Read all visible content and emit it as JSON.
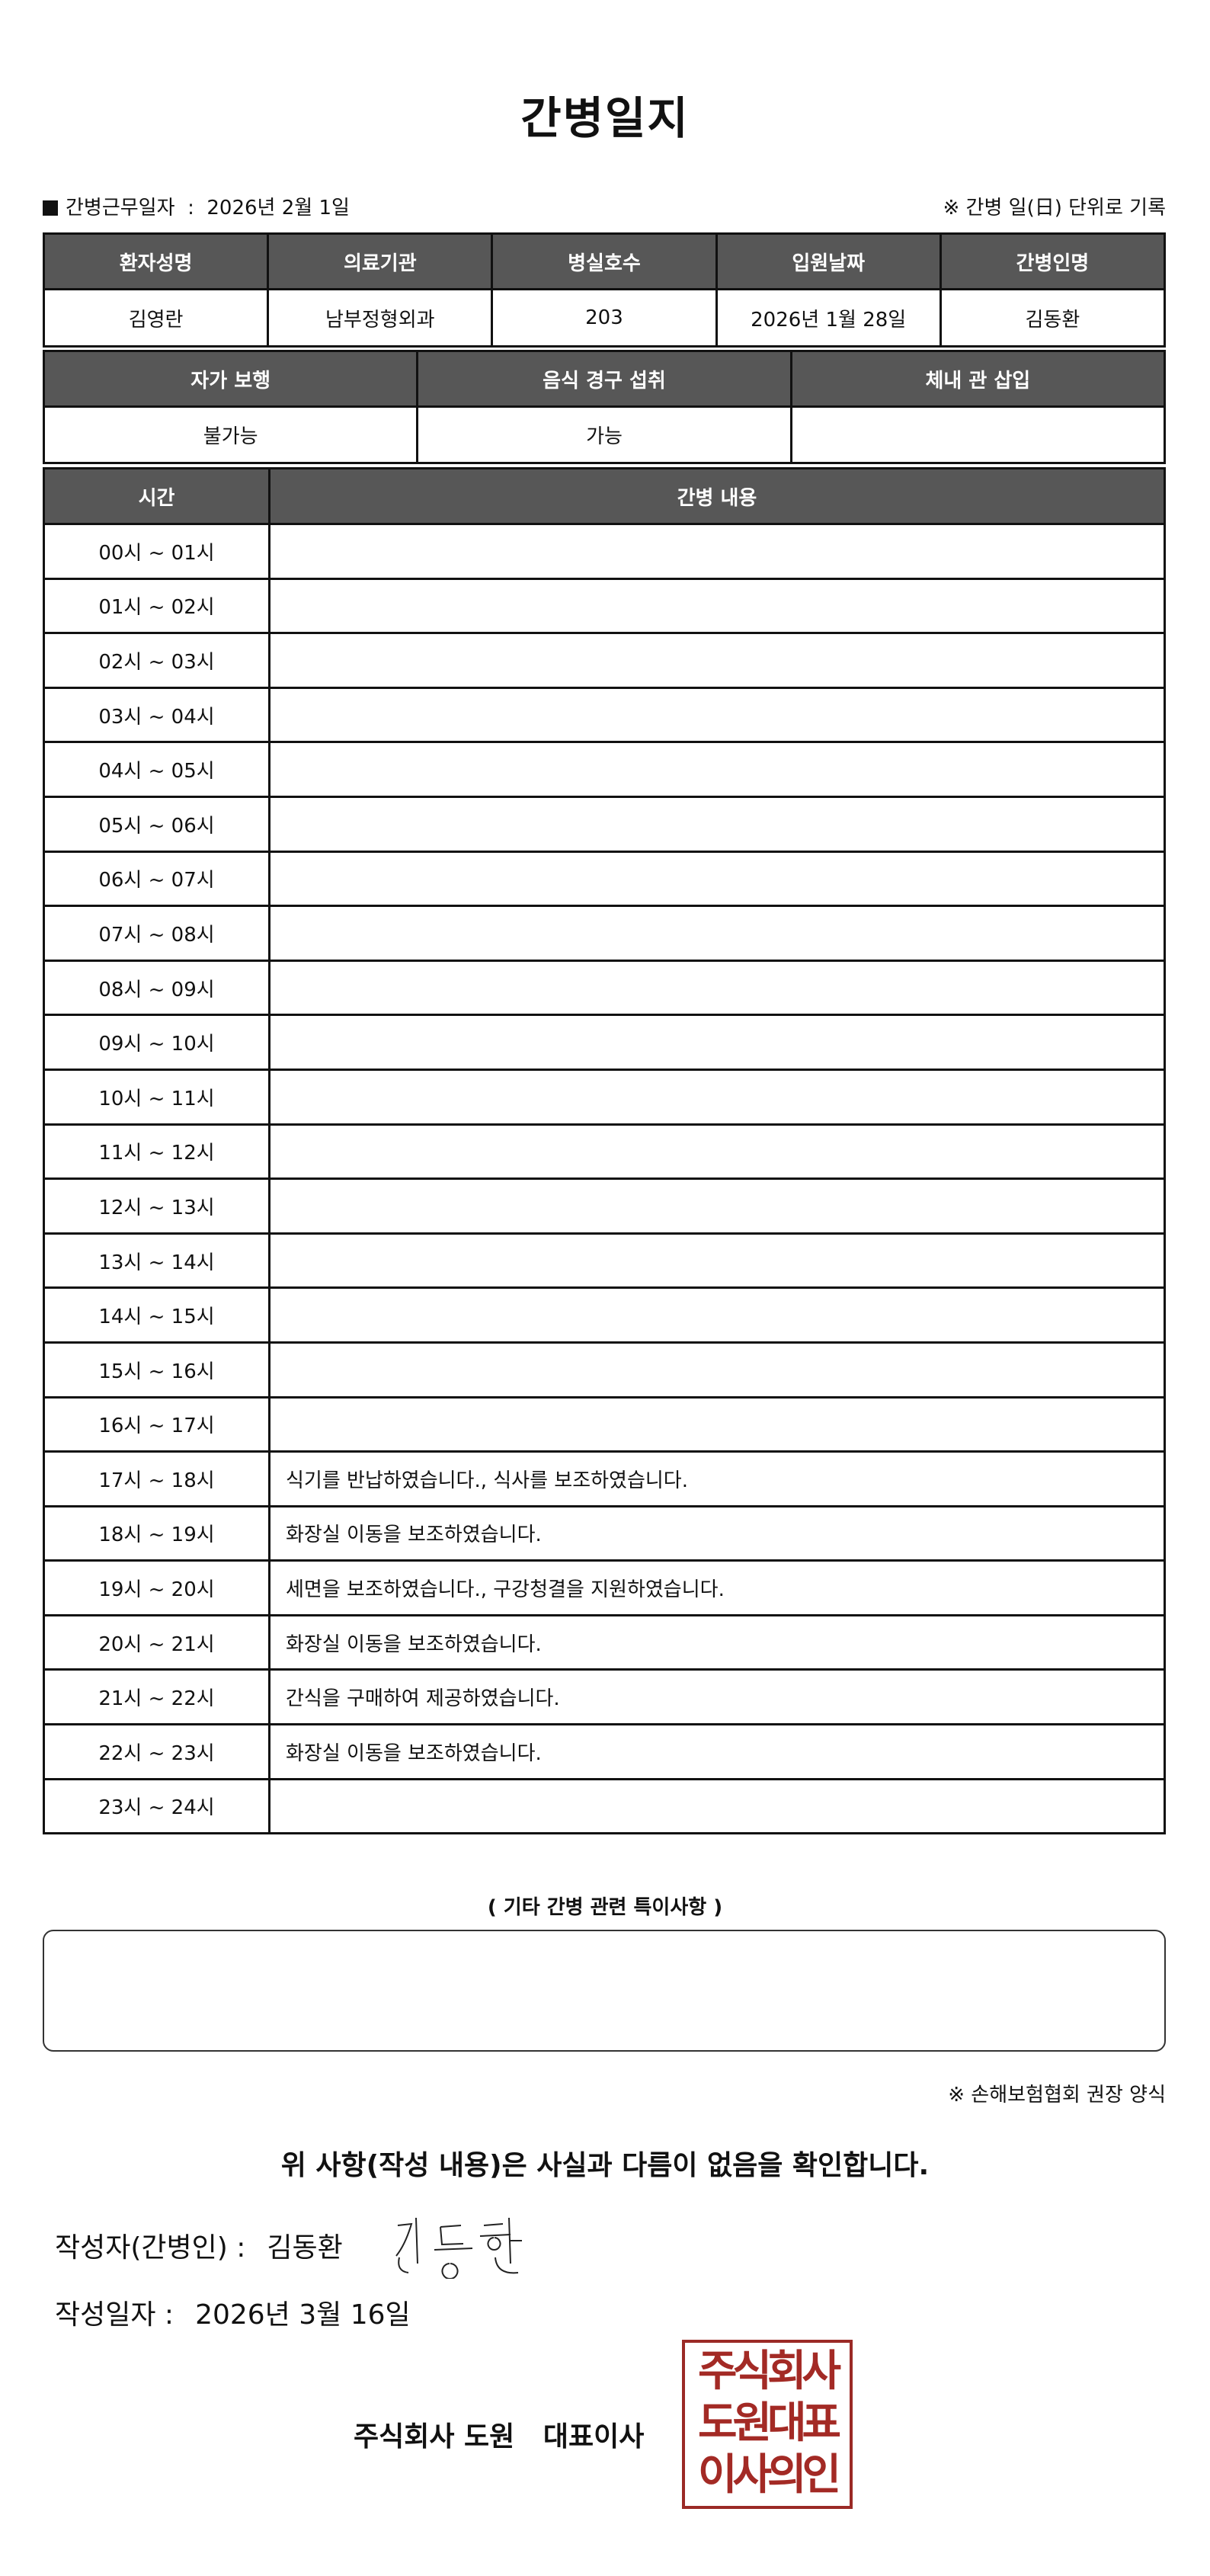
{
  "title": "간병일지",
  "info": {
    "work_date_label": "간병근무일자",
    "work_date_sep": ":",
    "work_date": "2026년 2월 1일",
    "note": "※ 간병 일(日) 단위로 기록"
  },
  "patient_table": {
    "headers": [
      "환자성명",
      "의료기관",
      "병실호수",
      "입원날짜",
      "간병인명"
    ],
    "values": [
      "김영란",
      "남부정형외과",
      "203",
      "2026년 1월 28일",
      "김동환"
    ]
  },
  "status_table": {
    "headers": [
      "자가 보행",
      "음식 경구 섭취",
      "체내 관 삽입"
    ],
    "values": [
      "불가능",
      "가능",
      ""
    ]
  },
  "log_table": {
    "headers": [
      "시간",
      "간병 내용"
    ],
    "rows": [
      {
        "time": "00시 ~ 01시",
        "content": ""
      },
      {
        "time": "01시 ~ 02시",
        "content": ""
      },
      {
        "time": "02시 ~ 03시",
        "content": ""
      },
      {
        "time": "03시 ~ 04시",
        "content": ""
      },
      {
        "time": "04시 ~ 05시",
        "content": ""
      },
      {
        "time": "05시 ~ 06시",
        "content": ""
      },
      {
        "time": "06시 ~ 07시",
        "content": ""
      },
      {
        "time": "07시 ~ 08시",
        "content": ""
      },
      {
        "time": "08시 ~ 09시",
        "content": ""
      },
      {
        "time": "09시 ~ 10시",
        "content": ""
      },
      {
        "time": "10시 ~ 11시",
        "content": ""
      },
      {
        "time": "11시 ~ 12시",
        "content": ""
      },
      {
        "time": "12시 ~ 13시",
        "content": ""
      },
      {
        "time": "13시 ~ 14시",
        "content": ""
      },
      {
        "time": "14시 ~ 15시",
        "content": ""
      },
      {
        "time": "15시 ~ 16시",
        "content": ""
      },
      {
        "time": "16시 ~ 17시",
        "content": ""
      },
      {
        "time": "17시 ~ 18시",
        "content": "식기를 반납하였습니다., 식사를 보조하였습니다."
      },
      {
        "time": "18시 ~ 19시",
        "content": "화장실 이동을 보조하였습니다."
      },
      {
        "time": "19시 ~ 20시",
        "content": "세면을 보조하였습니다., 구강청결을 지원하였습니다."
      },
      {
        "time": "20시 ~ 21시",
        "content": "화장실 이동을 보조하였습니다."
      },
      {
        "time": "21시 ~ 22시",
        "content": "간식을 구매하여 제공하였습니다."
      },
      {
        "time": "22시 ~ 23시",
        "content": "화장실 이동을 보조하였습니다."
      },
      {
        "time": "23시 ~ 24시",
        "content": ""
      }
    ]
  },
  "notes": {
    "label": "( 기타 간병 관련 특이사항 )",
    "value": ""
  },
  "form_note": "※ 손해보험협회 권장 양식",
  "confirm": "위 사항(작성 내용)은 사실과 다름이 없음을 확인합니다.",
  "writer": {
    "label": "작성자(간병인) :",
    "name": "김동환",
    "signature": "김동환"
  },
  "written_date": {
    "label": "작성일자 :",
    "value": "2026년 3월 16일"
  },
  "company": "주식회사 도원   대표이사",
  "stamp": {
    "lines": [
      "주식회사",
      "도원대표",
      "이사의인"
    ],
    "color": "#9b2a26"
  },
  "colors": {
    "header_bg": "#575757",
    "watermark_blue": "#d9e9f5",
    "watermark_yellow": "#f6f8dc"
  }
}
